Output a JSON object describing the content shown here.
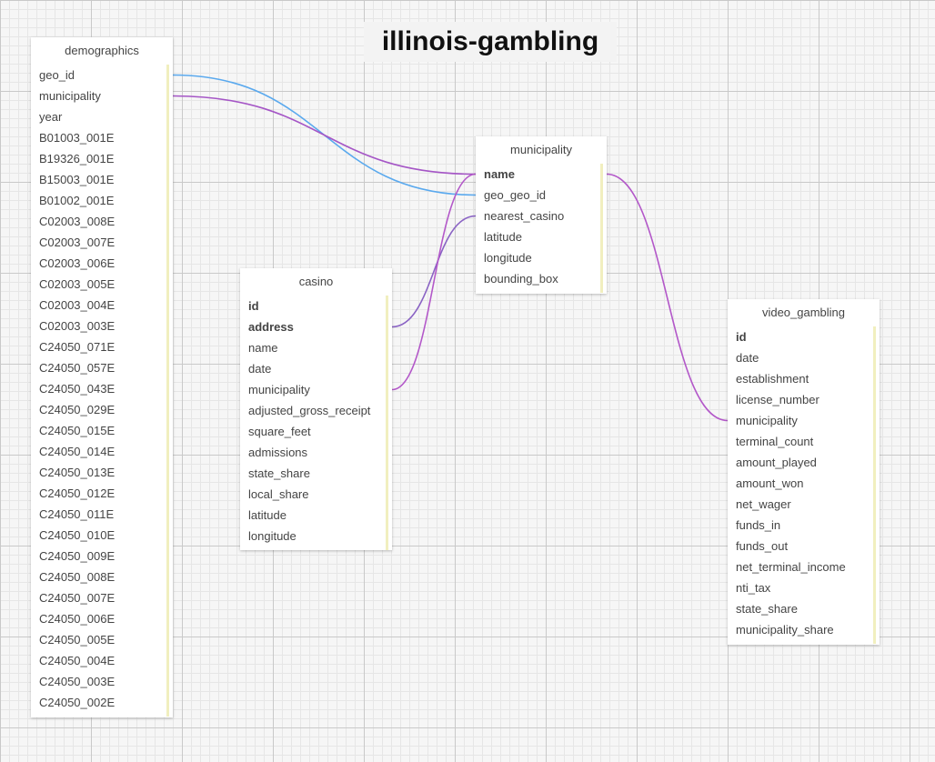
{
  "title": "illinois-gambling",
  "tables": [
    {
      "key": "demographics",
      "name": "demographics",
      "columns": [
        {
          "name": "geo_id",
          "pk": false
        },
        {
          "name": "municipality",
          "pk": false
        },
        {
          "name": "year",
          "pk": false
        },
        {
          "name": "B01003_001E",
          "pk": false
        },
        {
          "name": "B19326_001E",
          "pk": false
        },
        {
          "name": "B15003_001E",
          "pk": false
        },
        {
          "name": "B01002_001E",
          "pk": false
        },
        {
          "name": "C02003_008E",
          "pk": false
        },
        {
          "name": "C02003_007E",
          "pk": false
        },
        {
          "name": "C02003_006E",
          "pk": false
        },
        {
          "name": "C02003_005E",
          "pk": false
        },
        {
          "name": "C02003_004E",
          "pk": false
        },
        {
          "name": "C02003_003E",
          "pk": false
        },
        {
          "name": "C24050_071E",
          "pk": false
        },
        {
          "name": "C24050_057E",
          "pk": false
        },
        {
          "name": "C24050_043E",
          "pk": false
        },
        {
          "name": "C24050_029E",
          "pk": false
        },
        {
          "name": "C24050_015E",
          "pk": false
        },
        {
          "name": "C24050_014E",
          "pk": false
        },
        {
          "name": "C24050_013E",
          "pk": false
        },
        {
          "name": "C24050_012E",
          "pk": false
        },
        {
          "name": "C24050_011E",
          "pk": false
        },
        {
          "name": "C24050_010E",
          "pk": false
        },
        {
          "name": "C24050_009E",
          "pk": false
        },
        {
          "name": "C24050_008E",
          "pk": false
        },
        {
          "name": "C24050_007E",
          "pk": false
        },
        {
          "name": "C24050_006E",
          "pk": false
        },
        {
          "name": "C24050_005E",
          "pk": false
        },
        {
          "name": "C24050_004E",
          "pk": false
        },
        {
          "name": "C24050_003E",
          "pk": false
        },
        {
          "name": "C24050_002E",
          "pk": false
        }
      ]
    },
    {
      "key": "municipality",
      "name": "municipality",
      "columns": [
        {
          "name": "name",
          "pk": true
        },
        {
          "name": "geo_geo_id",
          "pk": false
        },
        {
          "name": "nearest_casino",
          "pk": false
        },
        {
          "name": "latitude",
          "pk": false
        },
        {
          "name": "longitude",
          "pk": false
        },
        {
          "name": "bounding_box",
          "pk": false
        }
      ]
    },
    {
      "key": "casino",
      "name": "casino",
      "columns": [
        {
          "name": "id",
          "pk": true
        },
        {
          "name": "address",
          "pk": true
        },
        {
          "name": "name",
          "pk": false
        },
        {
          "name": "date",
          "pk": false
        },
        {
          "name": "municipality",
          "pk": false
        },
        {
          "name": "adjusted_gross_receipt",
          "pk": false
        },
        {
          "name": "square_feet",
          "pk": false
        },
        {
          "name": "admissions",
          "pk": false
        },
        {
          "name": "state_share",
          "pk": false
        },
        {
          "name": "local_share",
          "pk": false
        },
        {
          "name": "latitude",
          "pk": false
        },
        {
          "name": "longitude",
          "pk": false
        }
      ]
    },
    {
      "key": "video_gambling",
      "name": "video_gambling",
      "columns": [
        {
          "name": "id",
          "pk": true
        },
        {
          "name": "date",
          "pk": false
        },
        {
          "name": "establishment",
          "pk": false
        },
        {
          "name": "license_number",
          "pk": false
        },
        {
          "name": "municipality",
          "pk": false
        },
        {
          "name": "terminal_count",
          "pk": false
        },
        {
          "name": "amount_played",
          "pk": false
        },
        {
          "name": "amount_won",
          "pk": false
        },
        {
          "name": "net_wager",
          "pk": false
        },
        {
          "name": "funds_in",
          "pk": false
        },
        {
          "name": "funds_out",
          "pk": false
        },
        {
          "name": "net_terminal_income",
          "pk": false
        },
        {
          "name": "nti_tax",
          "pk": false
        },
        {
          "name": "state_share",
          "pk": false
        },
        {
          "name": "municipality_share",
          "pk": false
        }
      ]
    }
  ],
  "relations": [
    {
      "from": [
        "demographics",
        "geo_id"
      ],
      "to": [
        "municipality",
        "geo_geo_id"
      ],
      "color": "#5aa9ee"
    },
    {
      "from": [
        "demographics",
        "municipality"
      ],
      "to": [
        "municipality",
        "name"
      ],
      "color": "#a556c6"
    },
    {
      "from": [
        "casino",
        "address"
      ],
      "to": [
        "municipality",
        "nearest_casino"
      ],
      "color": "#8a63c4"
    },
    {
      "from": [
        "casino",
        "municipality"
      ],
      "to": [
        "municipality",
        "name"
      ],
      "color": "#b358c9"
    },
    {
      "from": [
        "municipality",
        "name"
      ],
      "to": [
        "video_gambling",
        "municipality"
      ],
      "color": "#b358c9"
    }
  ]
}
